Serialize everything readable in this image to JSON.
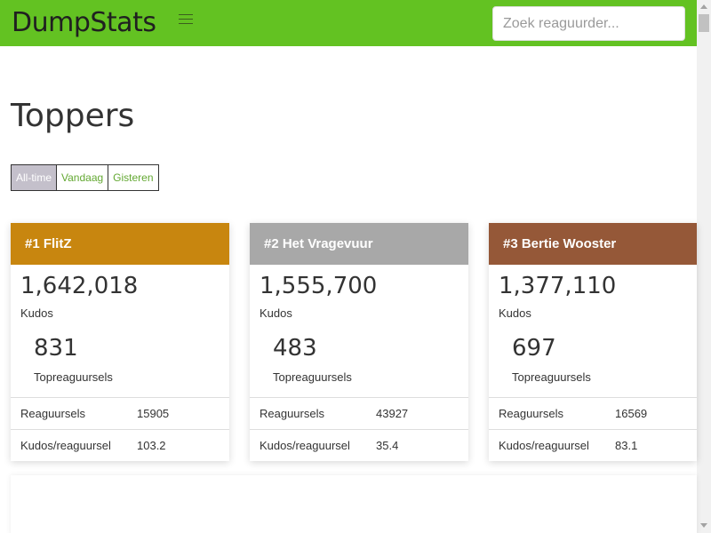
{
  "app": {
    "brand": "DumpStats",
    "search_placeholder": "Zoek reaguurder...",
    "accent_color": "#63c222"
  },
  "page": {
    "title": "Toppers",
    "filters": [
      {
        "label": "All-time",
        "active": true
      },
      {
        "label": "Vandaag",
        "active": false
      },
      {
        "label": "Gisteren",
        "active": false
      }
    ]
  },
  "cards": [
    {
      "title": "#1 FlitZ",
      "color": "#c8860f",
      "kudos": "1,642,018",
      "kudos_label": "Kudos",
      "top": "831",
      "top_label": "Topreaguursels",
      "rows": [
        {
          "label": "Reaguursels",
          "value": "15905"
        },
        {
          "label": "Kudos/reaguursel",
          "value": "103.2"
        }
      ]
    },
    {
      "title": "#2 Het Vragevuur",
      "color": "#a8a8a8",
      "kudos": "1,555,700",
      "kudos_label": "Kudos",
      "top": "483",
      "top_label": "Topreaguursels",
      "rows": [
        {
          "label": "Reaguursels",
          "value": "43927"
        },
        {
          "label": "Kudos/reaguursel",
          "value": "35.4"
        }
      ]
    },
    {
      "title": "#3 Bertie Wooster",
      "color": "#955838",
      "kudos": "1,377,110",
      "kudos_label": "Kudos",
      "top": "697",
      "top_label": "Topreaguursels",
      "rows": [
        {
          "label": "Reaguursels",
          "value": "16569"
        },
        {
          "label": "Kudos/reaguursel",
          "value": "83.1"
        }
      ]
    }
  ]
}
